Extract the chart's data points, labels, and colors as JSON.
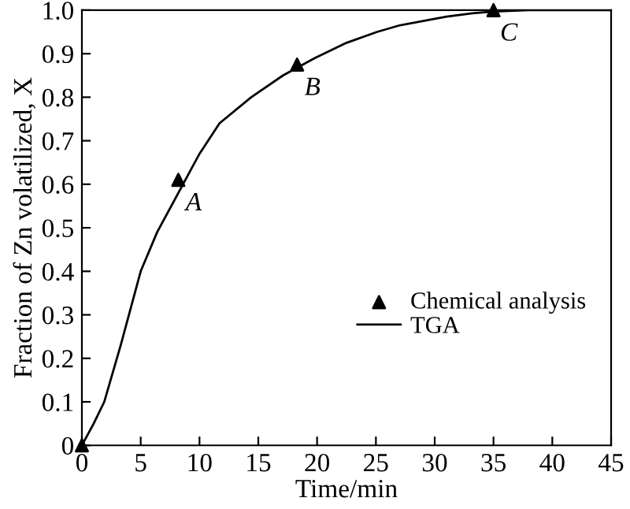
{
  "chart_data": {
    "type": "line",
    "xlabel": "Time/min",
    "ylabel": "Fraction of Zn volatilized, X",
    "xlim": [
      0,
      45
    ],
    "ylim": [
      0,
      1.0
    ],
    "xticks": [
      0,
      5,
      10,
      15,
      20,
      25,
      30,
      35,
      40,
      45
    ],
    "yticks": [
      0,
      0.1,
      0.2,
      0.3,
      0.4,
      0.5,
      0.6,
      0.7,
      0.8,
      0.9,
      {
        "value": 1.0,
        "label": "1.0"
      }
    ],
    "grid": false,
    "legend": "right",
    "series": [
      {
        "name": "Chemical analysis",
        "type": "scatter",
        "marker": "triangle",
        "color": "#000000",
        "x": [
          0,
          8.2,
          18.3,
          35
        ],
        "values": [
          0,
          0.61,
          0.875,
          1.0
        ]
      },
      {
        "name": "TGA",
        "marker": "none",
        "line_style": "solid",
        "color": "#000000",
        "x": [
          0,
          1,
          1.9,
          3.3,
          5,
          6.4,
          8.2,
          10,
          11.7,
          14.4,
          17.1,
          19.8,
          22.5,
          25.1,
          27,
          29.2,
          31,
          33.2,
          35,
          38,
          41,
          45
        ],
        "values": [
          0,
          0.05,
          0.1,
          0.23,
          0.4,
          0.49,
          0.58,
          0.67,
          0.74,
          0.8,
          0.85,
          0.89,
          0.925,
          0.95,
          0.965,
          0.976,
          0.985,
          0.993,
          0.997,
          1.0,
          1.0,
          1.0
        ]
      }
    ],
    "annotations": [
      {
        "text": "A",
        "x": 8.2,
        "y": 0.61
      },
      {
        "text": "B",
        "x": 18.3,
        "y": 0.875
      },
      {
        "text": "C",
        "x": 35,
        "y": 1.0
      }
    ]
  }
}
